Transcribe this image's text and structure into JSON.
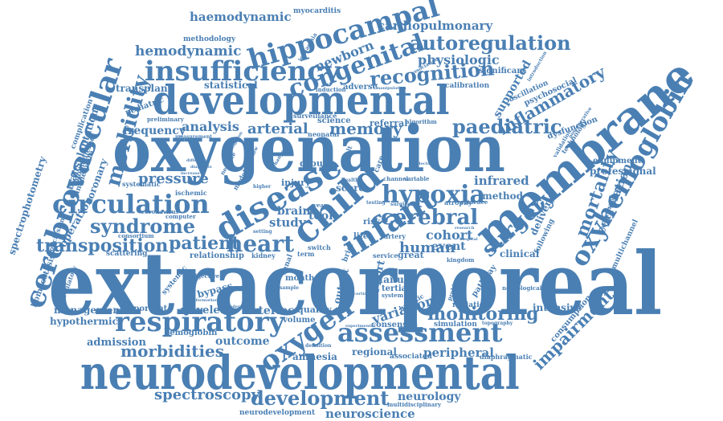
{
  "cloud": {
    "color": "#4a7fb3",
    "words": {
      "extracorporeal": "extracorporeal",
      "oxygenation": "oxygenation",
      "neurodevelopmental": "neurodevelopmental",
      "developmental": "developmental",
      "membrane": "membrane",
      "cerebrovascular": "cerebrovascular",
      "oxyhemoglobin": "oxyhemoglobin",
      "hippocampal": "hippocampal",
      "insufficiency": "insufficiency",
      "congenital": "congenital",
      "autoregulation": "autoregulation",
      "disease": "disease",
      "child": "child",
      "infant": "infant",
      "hypoxia": "hypoxia",
      "circulation": "circulation",
      "respiratory": "respiratory",
      "assessment": "assessment",
      "oxygen": "oxygen",
      "morbidity": "morbidity",
      "morbidities": "morbidities",
      "cerebral": "cerebral",
      "surgery": "surgery",
      "heart": "heart",
      "syndrome": "syndrome",
      "transposition": "transposition",
      "paediatric": "paediatric",
      "recognition": "recognition",
      "development": "development",
      "neuroscience": "neuroscience",
      "monitoring": "monitoring",
      "spectroscopy": "spectroscopy",
      "mortality": "mortality",
      "inflammatory": "inflammatory",
      "impairment": "impairment",
      "patient": "patient",
      "memory": "memory",
      "haemodynamic": "haemodynamic",
      "hemodynamic": "hemodynamic",
      "cardiopulmonary": "cardiopulmonary",
      "physiologic": "physiologic",
      "newborn": "newborn",
      "pressure": "pressure",
      "arterial": "arterial",
      "analysis": "analysis",
      "frequency": "frequency",
      "variation": "variation",
      "neurology": "neurology",
      "correlation": "correlation",
      "cohort": "cohort",
      "human": "human",
      "infrared": "infrared",
      "peripheral": "peripheral",
      "spectrophotometry": "spectrophotometry",
      "cerebrovascular2": "transplantation",
      "coronary": "coronary",
      "operation": "operation",
      "management": "management",
      "hypothermic": "hypothermic",
      "admission": "admission",
      "outcome": "outcome",
      "wavelet": "wavelet",
      "arteries": "arteries",
      "amnesia": "amnesia",
      "regional": "regional",
      "brain": "brain",
      "study": "study",
      "statistical": "statistical",
      "supported": "supported",
      "significant": "significant",
      "transplant": "transplant",
      "methodology": "methodology",
      "myocarditis": "myocarditis",
      "hemoglobin": "hemoglobin",
      "event": "event",
      "method": "method",
      "professional": "professional",
      "equipment": "equipment",
      "consumption": "consumption",
      "intensive": "intensive",
      "delivery": "delivery",
      "homeostasis": "homeostasis",
      "scattering": "scattering",
      "clinical": "clinical",
      "quality": "quality",
      "volume": "volume",
      "tertiary": "tertiary",
      "failure": "failure",
      "support": "support",
      "output": "output",
      "bypass": "bypass",
      "relationship": "relationship",
      "group": "group",
      "score": "score",
      "adverse": "adverse",
      "important": "important",
      "associated": "associated",
      "neurodevelopment": "neurodevelopment",
      "multidisciplinary": "multidisciplinary",
      "diaphragmatic": "diaphragmatic",
      "science": "science",
      "referral": "referral",
      "calibration": "calibration",
      "psychosocial": "psychosocial",
      "dysfunction": "dysfunction",
      "systemic": "systemic",
      "pathway": "pathway",
      "simulation": "simulation",
      "radiation": "radiation",
      "consensus": "consensus",
      "multichannel": "multichannel",
      "pediatric": "pediatric",
      "complication": "complication",
      "biomedicine": "biomedicine",
      "inadequate": "inadequate",
      "conclusion": "conclusion",
      "circulatory": "circulatory",
      "injury": "injury",
      "tool": "tool",
      "life": "life",
      "risk": "risk",
      "kidney": "kidney",
      "ischemic": "ischemic",
      "systematic": "systematic",
      "coronavirus": "coronavirus",
      "consortium": "consortium",
      "computer": "computer",
      "objective": "objective",
      "month": "month",
      "hypoxic": "hypoxic",
      "great": "great",
      "service": "service",
      "term": "term",
      "artery": "artery",
      "neurological": "neurological",
      "following": "following",
      "oscillation": "oscillation",
      "technology": "technology",
      "preliminary": "preliminary",
      "surveillance": "surveillance",
      "algorithm": "algorithm",
      "neonatal": "neonatal",
      "induction": "induction",
      "ischaemia": "ischaemia",
      "introduction": "introduction",
      "abnormalities": "abnormalities",
      "atrophy": "atrophy",
      "renal": "renal",
      "switch": "switch",
      "system": "system",
      "channel": "channel",
      "variable": "variable",
      "health": "health",
      "higher": "higher",
      "testing": "testing",
      "evidence": "evidence",
      "problem": "problem",
      "manipulation": "manipulation",
      "association": "association",
      "definition": "definition",
      "topography": "topography",
      "validation": "validation",
      "postoperative": "postoperative",
      "kingdom": "kingdom",
      "measurement": "measurement",
      "neonate": "neonate",
      "model": "model",
      "change": "change",
      "year": "year",
      "sample": "sample",
      "hospital": "hospital",
      "experimental": "experimental",
      "research": "research",
      "review": "review",
      "brief": "brief",
      "doctor": "doctor",
      "care": "care",
      "result": "result",
      "undergoing": "undergoing",
      "information": "information",
      "surgical": "surgical",
      "setting": "setting",
      "increase": "increase",
      "difference": "difference",
      "diagnosis": "diagnosis",
      "factor": "factor",
      "investigation": "investigation",
      "extracorporeal2": "conventional",
      "cardiac": "cardiac",
      "blood": "blood",
      "severe": "severe",
      "focus": "focus",
      "population": "population",
      "ischaemic": "ischaemic",
      "effect": "effect",
      "cortical": "cortical"
    }
  }
}
